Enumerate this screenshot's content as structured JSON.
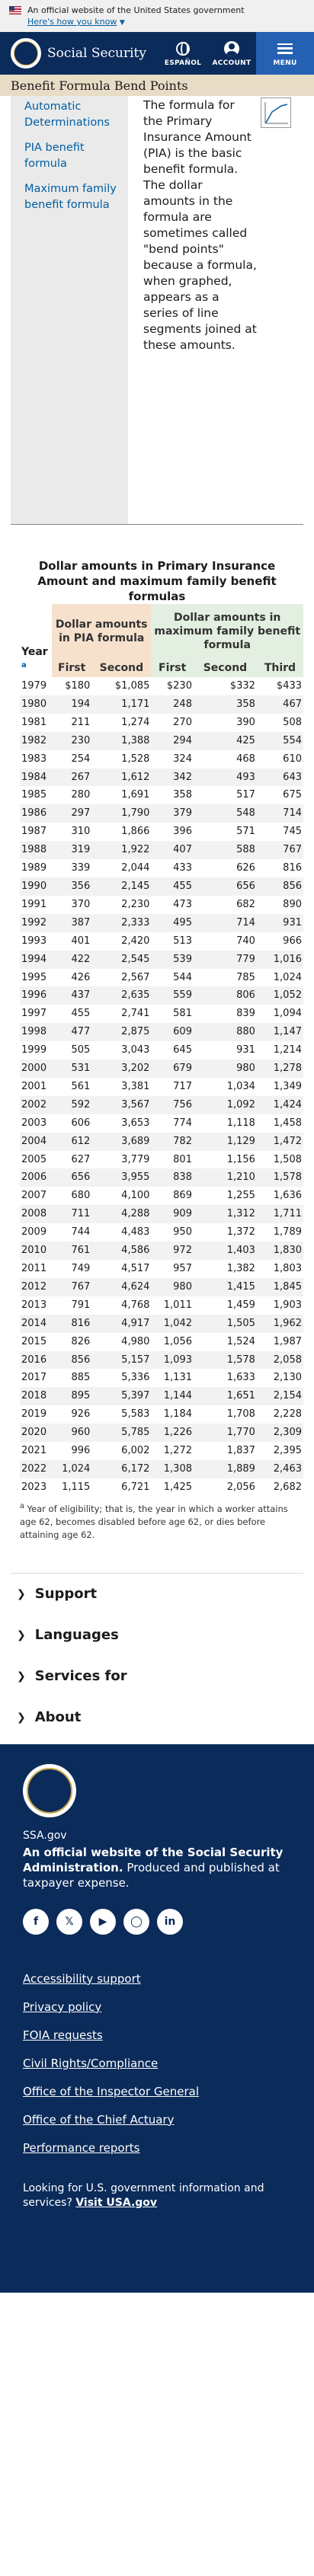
{
  "gov_banner": {
    "text": "An official website of the United States government",
    "link": "Here's how you know"
  },
  "header": {
    "brand": "Social Security",
    "espanol": "ESPAÑOL",
    "account": "ACCOUNT",
    "menu": "MENU"
  },
  "page_title": "Benefit Formula Bend Points",
  "side_nav": {
    "items": [
      "Automatic Determinations",
      "PIA benefit formula",
      "Maximum family benefit formula"
    ]
  },
  "intro": "The formula for the Primary Insurance Amount (PIA) is the basic benefit formula. The dollar amounts in the formula are sometimes called \"bend points\" because a formula, when graphed, appears as a series of line segments joined at these amounts.",
  "table": {
    "title": "Dollar amounts in Primary Insurance Amount and maximum family benefit formulas",
    "year_header": "Year",
    "year_note_marker": "a",
    "pia_header": "Dollar amounts in PIA formula",
    "max_header": "Dollar amounts in maximum family benefit formula",
    "sub_headers": [
      "First",
      "Second",
      "First",
      "Second",
      "Third"
    ],
    "rows": [
      [
        "1979",
        "$180",
        "$1,085",
        "$230",
        "$332",
        "$433"
      ],
      [
        "1980",
        "194",
        "1,171",
        "248",
        "358",
        "467"
      ],
      [
        "1981",
        "211",
        "1,274",
        "270",
        "390",
        "508"
      ],
      [
        "1982",
        "230",
        "1,388",
        "294",
        "425",
        "554"
      ],
      [
        "1983",
        "254",
        "1,528",
        "324",
        "468",
        "610"
      ],
      [
        "1984",
        "267",
        "1,612",
        "342",
        "493",
        "643"
      ],
      [
        "1985",
        "280",
        "1,691",
        "358",
        "517",
        "675"
      ],
      [
        "1986",
        "297",
        "1,790",
        "379",
        "548",
        "714"
      ],
      [
        "1987",
        "310",
        "1,866",
        "396",
        "571",
        "745"
      ],
      [
        "1988",
        "319",
        "1,922",
        "407",
        "588",
        "767"
      ],
      [
        "1989",
        "339",
        "2,044",
        "433",
        "626",
        "816"
      ],
      [
        "1990",
        "356",
        "2,145",
        "455",
        "656",
        "856"
      ],
      [
        "1991",
        "370",
        "2,230",
        "473",
        "682",
        "890"
      ],
      [
        "1992",
        "387",
        "2,333",
        "495",
        "714",
        "931"
      ],
      [
        "1993",
        "401",
        "2,420",
        "513",
        "740",
        "966"
      ],
      [
        "1994",
        "422",
        "2,545",
        "539",
        "779",
        "1,016"
      ],
      [
        "1995",
        "426",
        "2,567",
        "544",
        "785",
        "1,024"
      ],
      [
        "1996",
        "437",
        "2,635",
        "559",
        "806",
        "1,052"
      ],
      [
        "1997",
        "455",
        "2,741",
        "581",
        "839",
        "1,094"
      ],
      [
        "1998",
        "477",
        "2,875",
        "609",
        "880",
        "1,147"
      ],
      [
        "1999",
        "505",
        "3,043",
        "645",
        "931",
        "1,214"
      ],
      [
        "2000",
        "531",
        "3,202",
        "679",
        "980",
        "1,278"
      ],
      [
        "2001",
        "561",
        "3,381",
        "717",
        "1,034",
        "1,349"
      ],
      [
        "2002",
        "592",
        "3,567",
        "756",
        "1,092",
        "1,424"
      ],
      [
        "2003",
        "606",
        "3,653",
        "774",
        "1,118",
        "1,458"
      ],
      [
        "2004",
        "612",
        "3,689",
        "782",
        "1,129",
        "1,472"
      ],
      [
        "2005",
        "627",
        "3,779",
        "801",
        "1,156",
        "1,508"
      ],
      [
        "2006",
        "656",
        "3,955",
        "838",
        "1,210",
        "1,578"
      ],
      [
        "2007",
        "680",
        "4,100",
        "869",
        "1,255",
        "1,636"
      ],
      [
        "2008",
        "711",
        "4,288",
        "909",
        "1,312",
        "1,711"
      ],
      [
        "2009",
        "744",
        "4,483",
        "950",
        "1,372",
        "1,789"
      ],
      [
        "2010",
        "761",
        "4,586",
        "972",
        "1,403",
        "1,830"
      ],
      [
        "2011",
        "749",
        "4,517",
        "957",
        "1,382",
        "1,803"
      ],
      [
        "2012",
        "767",
        "4,624",
        "980",
        "1,415",
        "1,845"
      ],
      [
        "2013",
        "791",
        "4,768",
        "1,011",
        "1,459",
        "1,903"
      ],
      [
        "2014",
        "816",
        "4,917",
        "1,042",
        "1,505",
        "1,962"
      ],
      [
        "2015",
        "826",
        "4,980",
        "1,056",
        "1,524",
        "1,987"
      ],
      [
        "2016",
        "856",
        "5,157",
        "1,093",
        "1,578",
        "2,058"
      ],
      [
        "2017",
        "885",
        "5,336",
        "1,131",
        "1,633",
        "2,130"
      ],
      [
        "2018",
        "895",
        "5,397",
        "1,144",
        "1,651",
        "2,154"
      ],
      [
        "2019",
        "926",
        "5,583",
        "1,184",
        "1,708",
        "2,228"
      ],
      [
        "2020",
        "960",
        "5,785",
        "1,226",
        "1,770",
        "2,309"
      ],
      [
        "2021",
        "996",
        "6,002",
        "1,272",
        "1,837",
        "2,395"
      ],
      [
        "2022",
        "1,024",
        "6,172",
        "1,308",
        "1,889",
        "2,463"
      ],
      [
        "2023",
        "1,115",
        "6,721",
        "1,425",
        "2,056",
        "2,682"
      ]
    ],
    "footnote_marker": "a",
    "footnote": "Year of eligibility; that is, the year in which a worker attains age 62, becomes disabled before age 62, or dies before attaining age 62."
  },
  "accordion": [
    "Support",
    "Languages",
    "Services for",
    "About"
  ],
  "footer": {
    "domain": "SSA.gov",
    "official_bold": "An official website of the Social Security Administration.",
    "official_rest": " Produced and published at taxpayer expense.",
    "socials": [
      "facebook-icon",
      "twitter-icon",
      "youtube-icon",
      "instagram-icon",
      "linkedin-icon"
    ],
    "links": [
      "Accessibility support",
      "Privacy policy",
      "FOIA requests",
      "Civil Rights/Compliance",
      "Office of the Inspector General",
      "Office of the Chief Actuary",
      "Performance reports"
    ],
    "usa_text": "Looking for U.S. government information and services?",
    "usa_link": "Visit USA.gov"
  }
}
